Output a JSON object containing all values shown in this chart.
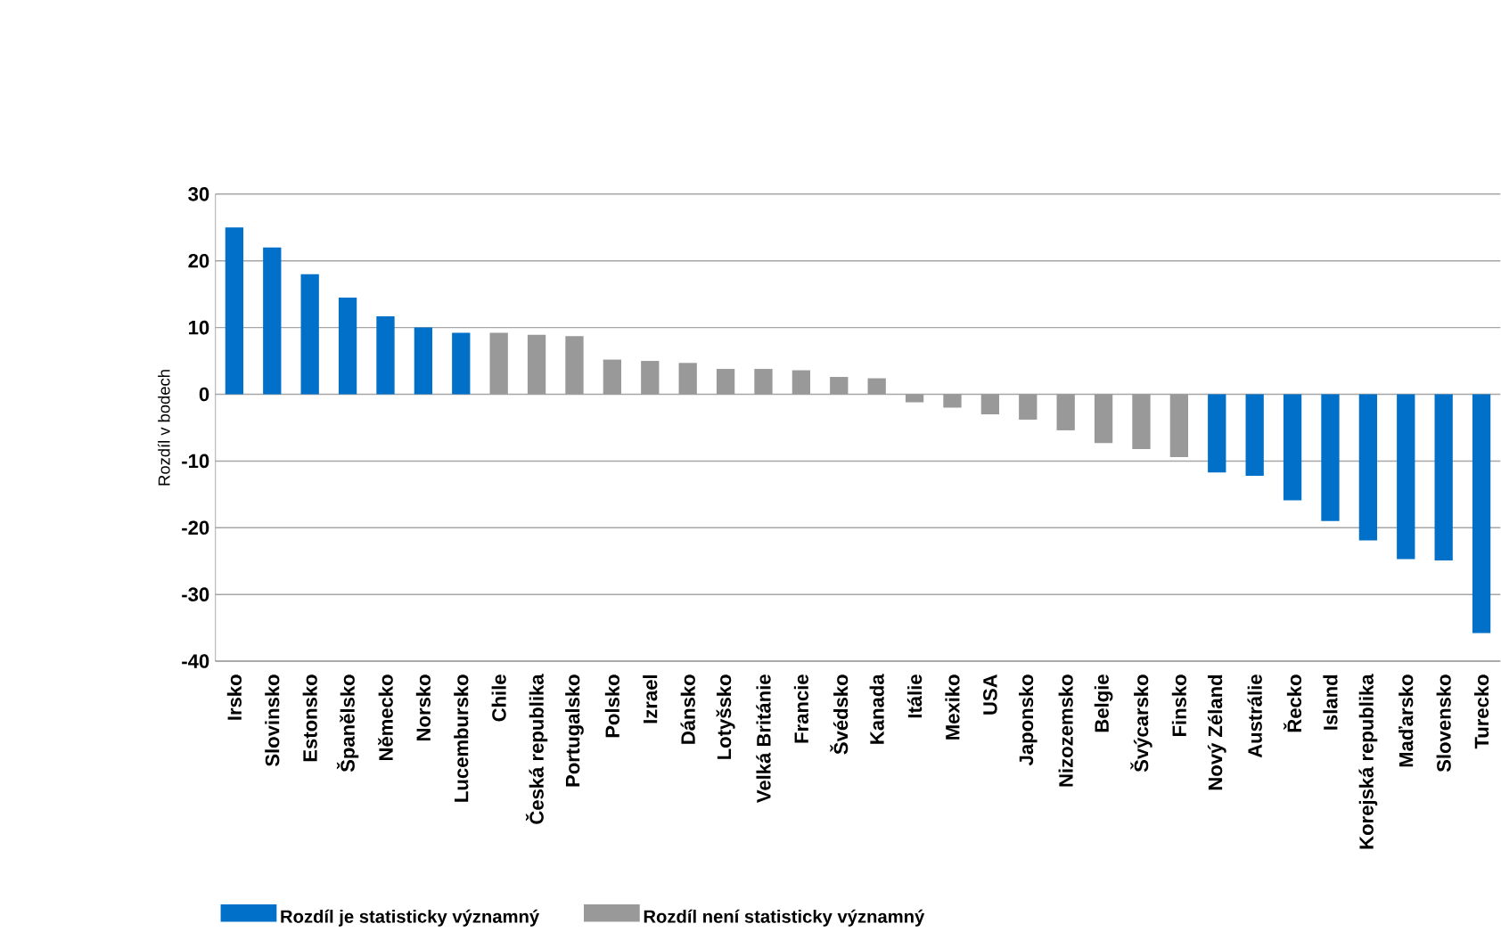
{
  "chart_data": {
    "type": "bar",
    "ylabel": "Rozdíl v bodech",
    "categories": [
      "Irsko",
      "Slovinsko",
      "Estonsko",
      "Španělsko",
      "Německo",
      "Norsko",
      "Lucembursko",
      "Chile",
      "Česká republika",
      "Portugalsko",
      "Polsko",
      "Izrael",
      "Dánsko",
      "Lotyšsko",
      "Velká Británie",
      "Francie",
      "Švédsko",
      "Kanada",
      "Itálie",
      "Mexiko",
      "USA",
      "Japonsko",
      "Nizozemsko",
      "Belgie",
      "Švýcarsko",
      "Finsko",
      "Nový Zéland",
      "Austrálie",
      "Řecko",
      "Island",
      "Korejská republika",
      "Maďarsko",
      "Slovensko",
      "Turecko"
    ],
    "series": [
      {
        "name": "Rozdíl je statisticky významný",
        "color": "#0070c8",
        "values": [
          25,
          22,
          18,
          14.5,
          11.7,
          10,
          9.2,
          null,
          null,
          null,
          null,
          null,
          null,
          null,
          null,
          null,
          null,
          null,
          null,
          null,
          null,
          null,
          null,
          null,
          null,
          null,
          -11.7,
          -12.2,
          -15.9,
          -19,
          -21.9,
          -24.7,
          -24.9,
          -35.8
        ]
      },
      {
        "name": "Rozdíl není statisticky významný",
        "color": "#999999",
        "values": [
          null,
          null,
          null,
          null,
          null,
          null,
          null,
          9.2,
          8.9,
          8.7,
          5.2,
          5,
          4.7,
          3.8,
          3.8,
          3.6,
          2.6,
          2.4,
          -1.2,
          -2,
          -3,
          -3.8,
          -5.4,
          -7.3,
          -8.2,
          -9.4,
          null,
          null,
          null,
          null,
          null,
          null,
          null,
          null
        ]
      }
    ],
    "ylim": [
      -40,
      30
    ],
    "yticks": [
      -40,
      -30,
      -20,
      -10,
      0,
      10,
      20,
      30
    ],
    "grid": "y",
    "legend": "bottom"
  }
}
